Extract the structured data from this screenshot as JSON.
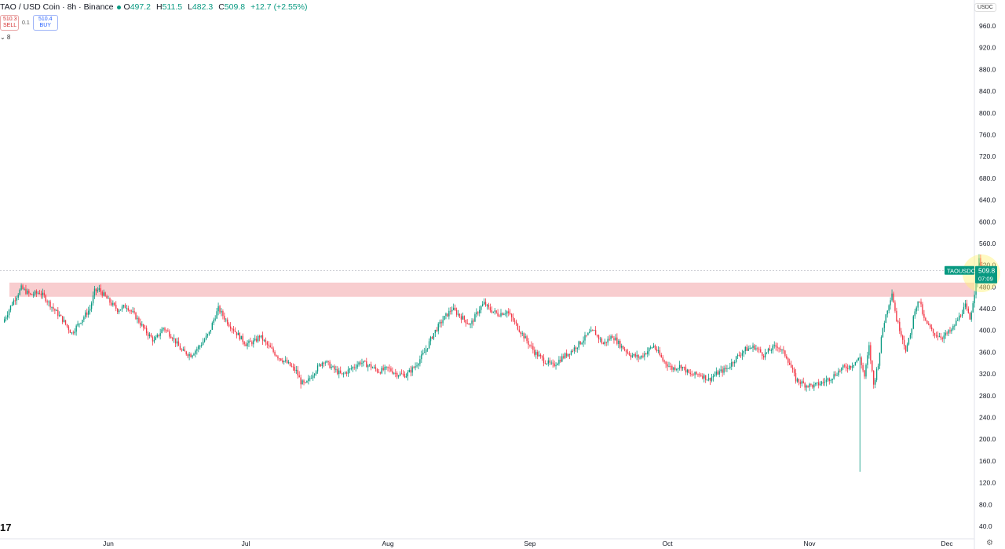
{
  "header": {
    "symbol": "TAO / USD Coin · 8h · Binance",
    "ohlc": [
      {
        "label": "O",
        "value": "497.2"
      },
      {
        "label": "H",
        "value": "511.5"
      },
      {
        "label": "L",
        "value": "482.3"
      },
      {
        "label": "C",
        "value": "509.8"
      }
    ],
    "change": "+12.7 (+2.55%)",
    "status_color": "#089981"
  },
  "trade": {
    "sell_price": "510.3",
    "sell_label": "SELL",
    "spread": "0.1",
    "buy_price": "510.4",
    "buy_label": "BUY"
  },
  "indicator_toggle": "⌄ 8",
  "currency": "USDC",
  "logo": "17",
  "price_tag": {
    "symbol": "TAOUSDC",
    "price": "509.8",
    "countdown": "07:09",
    "color": "#089981"
  },
  "colors": {
    "up": "#089981",
    "down": "#f23645",
    "zone": "#f5b8bb",
    "highlight": "#fff176"
  },
  "chart_data": {
    "type": "candlestick",
    "title": "TAO / USD Coin · 8h · Binance",
    "y_ticks": [
      960,
      920,
      880,
      840,
      800,
      760,
      720,
      680,
      640,
      600,
      560,
      520,
      480,
      440,
      400,
      360,
      320,
      280,
      240,
      200,
      160,
      120,
      80,
      40
    ],
    "y_tick_labels": [
      "960.0",
      "920.0",
      "880.0",
      "840.0",
      "800.0",
      "760.0",
      "720.0",
      "680.0",
      "640.0",
      "600.0",
      "560.0",
      "520.0",
      "480.0",
      "440.0",
      "400.0",
      "360.0",
      "320.0",
      "280.0",
      "240.0",
      "200.0",
      "160.0",
      "120.0",
      "80.0",
      "40.0"
    ],
    "ylim": [
      25,
      990
    ],
    "x_labels": [
      "Jun",
      "Jul",
      "Aug",
      "Sep",
      "Oct",
      "Nov",
      "Dec"
    ],
    "x_label_days": [
      15,
      45,
      76,
      107,
      137,
      168,
      198
    ],
    "xlim": [
      -8,
      212
    ],
    "resistance_zone": [
      462,
      488
    ],
    "last_price": 509.8,
    "price_path": [
      [
        -8,
        415
      ],
      [
        -6,
        450
      ],
      [
        -4,
        478
      ],
      [
        -2,
        465
      ],
      [
        0,
        470
      ],
      [
        1,
        462
      ],
      [
        3,
        440
      ],
      [
        5,
        420
      ],
      [
        7,
        395
      ],
      [
        9,
        418
      ],
      [
        11,
        440
      ],
      [
        12,
        472
      ],
      [
        13,
        475
      ],
      [
        15,
        455
      ],
      [
        17,
        438
      ],
      [
        19,
        445
      ],
      [
        21,
        425
      ],
      [
        23,
        400
      ],
      [
        25,
        380
      ],
      [
        27,
        405
      ],
      [
        29,
        388
      ],
      [
        31,
        362
      ],
      [
        33,
        355
      ],
      [
        35,
        372
      ],
      [
        37,
        395
      ],
      [
        38,
        420
      ],
      [
        39,
        440
      ],
      [
        41,
        415
      ],
      [
        43,
        395
      ],
      [
        45,
        375
      ],
      [
        47,
        380
      ],
      [
        48,
        390
      ],
      [
        50,
        370
      ],
      [
        52,
        352
      ],
      [
        54,
        340
      ],
      [
        56,
        325
      ],
      [
        57,
        305
      ],
      [
        58,
        300
      ],
      [
        60,
        325
      ],
      [
        62,
        345
      ],
      [
        64,
        330
      ],
      [
        66,
        318
      ],
      [
        68,
        330
      ],
      [
        70,
        342
      ],
      [
        72,
        335
      ],
      [
        74,
        325
      ],
      [
        76,
        330
      ],
      [
        78,
        320
      ],
      [
        80,
        318
      ],
      [
        82,
        335
      ],
      [
        84,
        360
      ],
      [
        86,
        395
      ],
      [
        88,
        420
      ],
      [
        90,
        440
      ],
      [
        92,
        425
      ],
      [
        94,
        410
      ],
      [
        96,
        440
      ],
      [
        97,
        450
      ],
      [
        98,
        440
      ],
      [
        100,
        430
      ],
      [
        102,
        435
      ],
      [
        104,
        410
      ],
      [
        106,
        385
      ],
      [
        108,
        360
      ],
      [
        110,
        345
      ],
      [
        112,
        335
      ],
      [
        114,
        350
      ],
      [
        116,
        362
      ],
      [
        118,
        378
      ],
      [
        120,
        395
      ],
      [
        121,
        398
      ],
      [
        123,
        375
      ],
      [
        125,
        390
      ],
      [
        127,
        370
      ],
      [
        129,
        355
      ],
      [
        131,
        350
      ],
      [
        133,
        365
      ],
      [
        134,
        372
      ],
      [
        136,
        345
      ],
      [
        138,
        330
      ],
      [
        140,
        335
      ],
      [
        142,
        318
      ],
      [
        144,
        320
      ],
      [
        146,
        310
      ],
      [
        148,
        322
      ],
      [
        150,
        330
      ],
      [
        152,
        350
      ],
      [
        154,
        365
      ],
      [
        156,
        370
      ],
      [
        158,
        355
      ],
      [
        160,
        368
      ],
      [
        161,
        372
      ],
      [
        163,
        352
      ],
      [
        165,
        310
      ],
      [
        167,
        300
      ],
      [
        169,
        298
      ],
      [
        171,
        305
      ],
      [
        173,
        315
      ],
      [
        175,
        330
      ],
      [
        177,
        335
      ],
      [
        179,
        350
      ],
      [
        180,
        315
      ],
      [
        181,
        370
      ],
      [
        182,
        300
      ],
      [
        183,
        340
      ],
      [
        184,
        405
      ],
      [
        185,
        440
      ],
      [
        186,
        470
      ],
      [
        187,
        420
      ],
      [
        188,
        395
      ],
      [
        189,
        365
      ],
      [
        190,
        390
      ],
      [
        191,
        440
      ],
      [
        192,
        455
      ],
      [
        193,
        420
      ],
      [
        195,
        395
      ],
      [
        197,
        388
      ],
      [
        199,
        400
      ],
      [
        201,
        430
      ],
      [
        202,
        445
      ],
      [
        203,
        420
      ],
      [
        204,
        470
      ],
      [
        205,
        530
      ],
      [
        206,
        505
      ],
      [
        207,
        510
      ]
    ],
    "notable_wicks": [
      {
        "day": 179,
        "low": 140,
        "high": 350
      },
      {
        "day": 205,
        "low": 490,
        "high": 540
      }
    ]
  }
}
